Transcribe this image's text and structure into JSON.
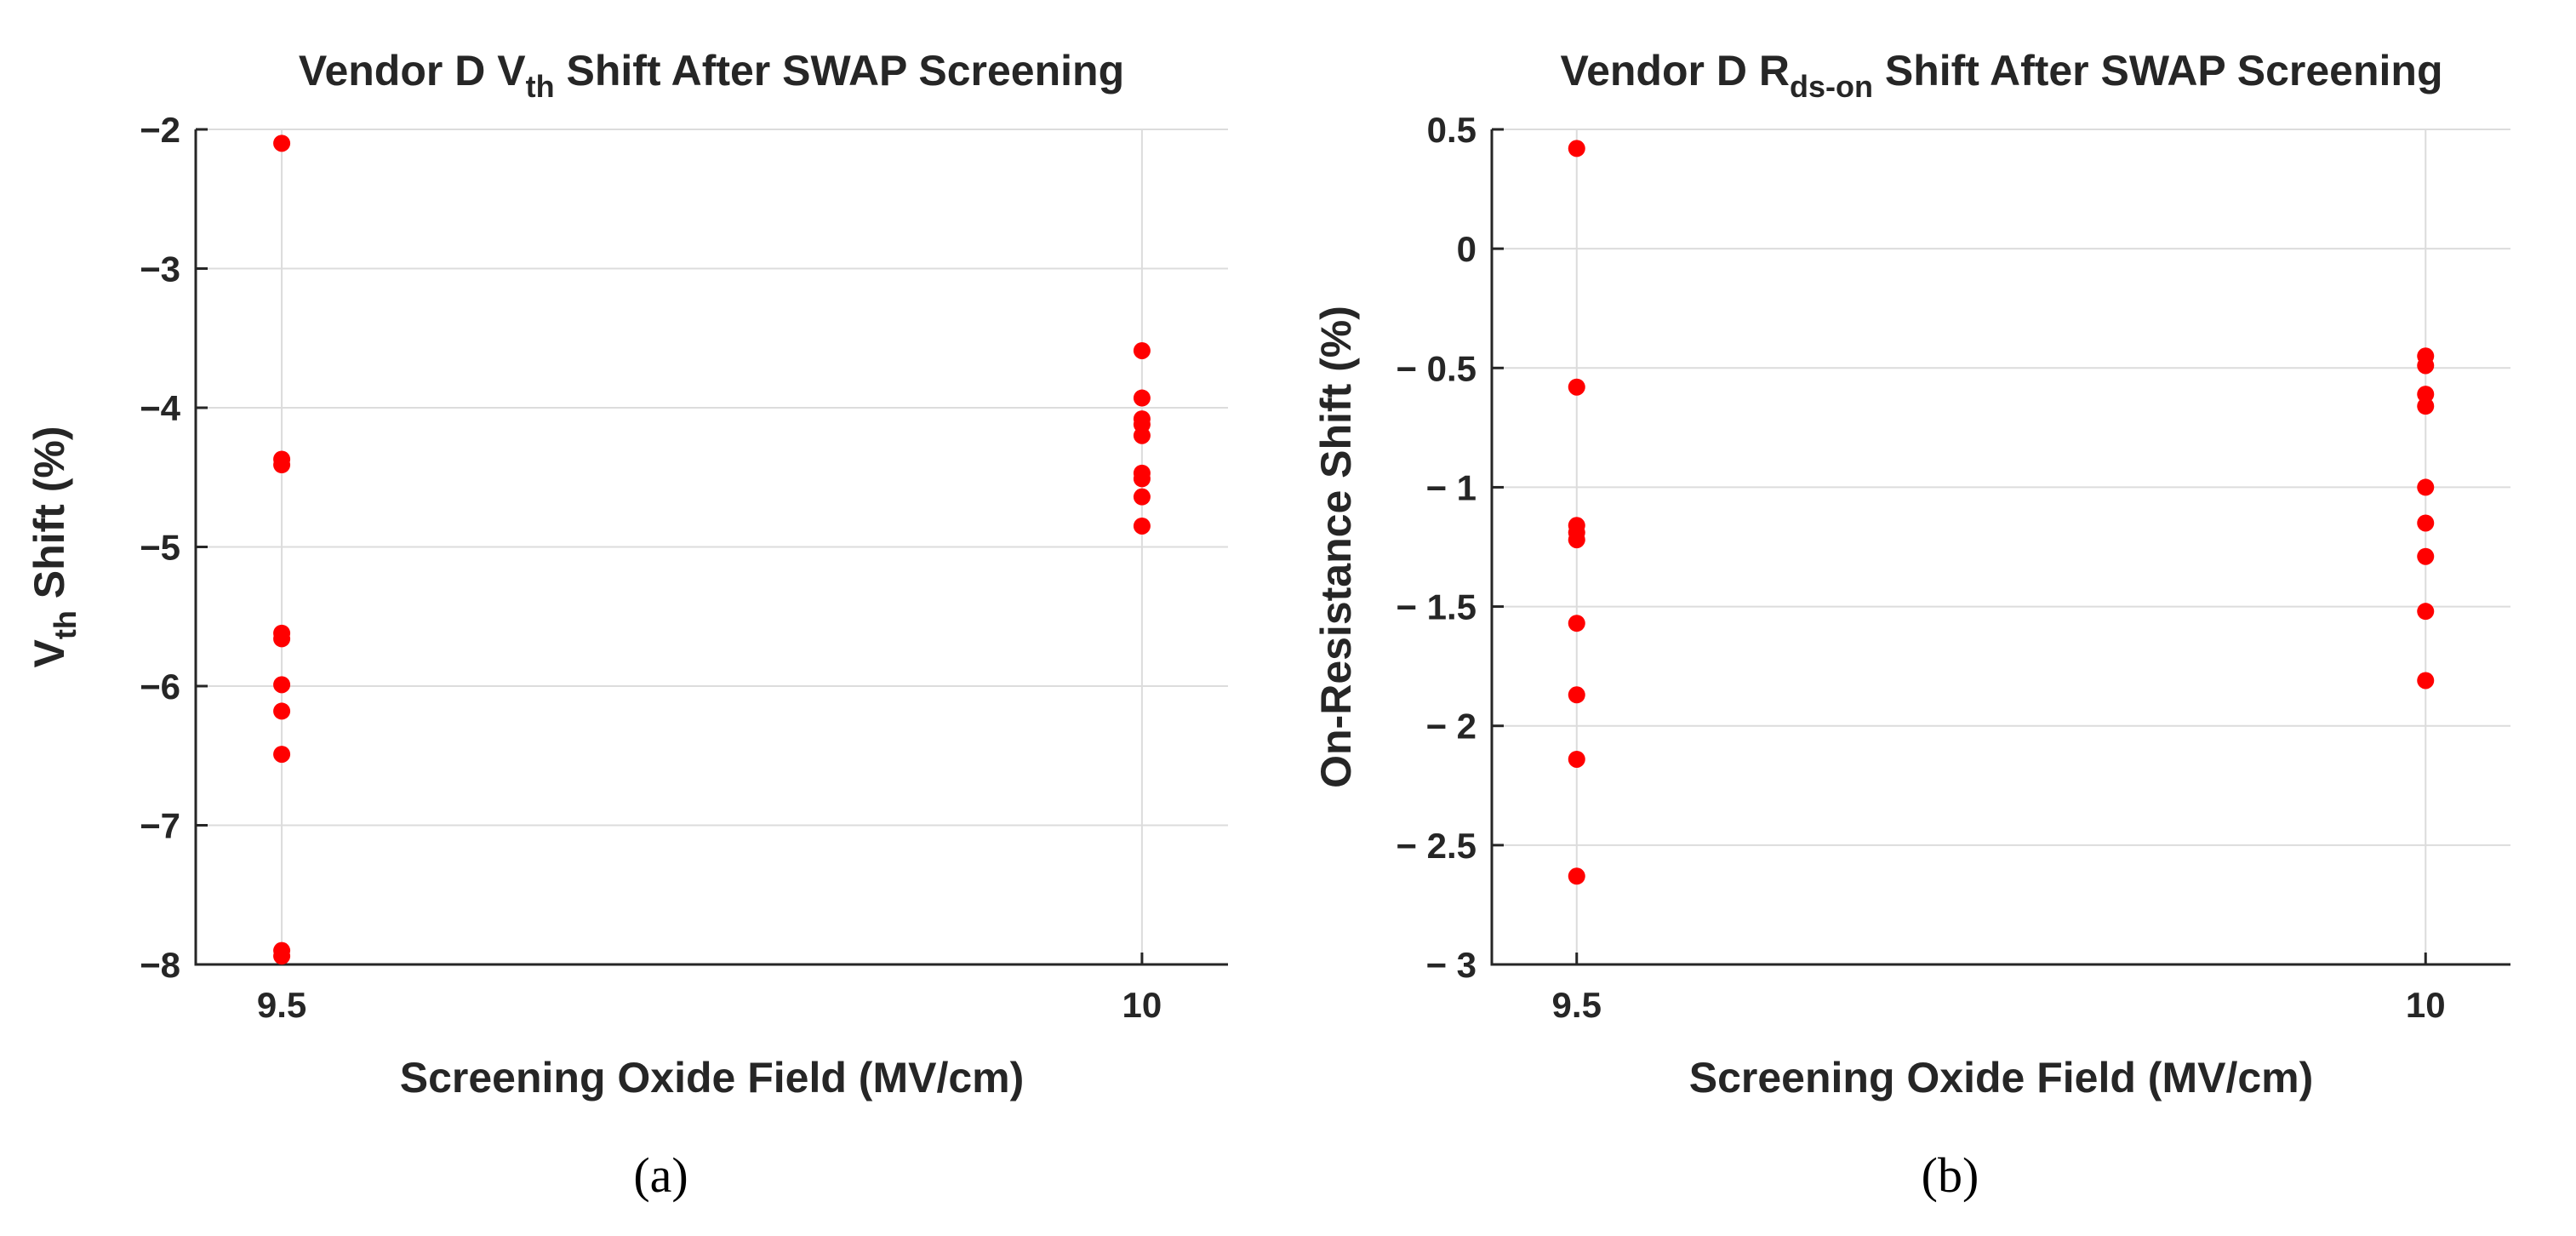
{
  "colors": {
    "marker": "#ff0000",
    "axis": "#262626",
    "grid": "#dcdcdc"
  },
  "chart_data": [
    {
      "type": "scatter",
      "panel_label": "(a)",
      "title": {
        "before": "Vendor D V",
        "sub": "th",
        "after": " Shift After SWAP Screening"
      },
      "xlabel": "Screening Oxide Field (MV/cm)",
      "ylabel": {
        "before": "V",
        "sub": "th",
        "after": " Shift (%)"
      },
      "xlim": [
        9.45,
        10.05
      ],
      "ylim": [
        -8,
        -2
      ],
      "xticks": [
        9.5,
        10
      ],
      "xtick_labels": [
        "9.5",
        "10"
      ],
      "yticks": [
        -8,
        -7,
        -6,
        -5,
        -4,
        -3,
        -2
      ],
      "ytick_labels": [
        "−8",
        "−7",
        "−6",
        "−5",
        "−4",
        "−3",
        "−2"
      ],
      "grid": true,
      "points": [
        [
          9.5,
          -2.1
        ],
        [
          9.5,
          -4.37
        ],
        [
          9.5,
          -4.41
        ],
        [
          9.5,
          -5.62
        ],
        [
          9.5,
          -5.66
        ],
        [
          9.5,
          -5.99
        ],
        [
          9.5,
          -6.18
        ],
        [
          9.5,
          -6.49
        ],
        [
          9.5,
          -7.9
        ],
        [
          9.5,
          -7.94
        ],
        [
          10,
          -3.59
        ],
        [
          10,
          -3.93
        ],
        [
          10,
          -4.08
        ],
        [
          10,
          -4.12
        ],
        [
          10,
          -4.2
        ],
        [
          10,
          -4.47
        ],
        [
          10,
          -4.51
        ],
        [
          10,
          -4.64
        ],
        [
          10,
          -4.85
        ]
      ]
    },
    {
      "type": "scatter",
      "panel_label": "(b)",
      "title": {
        "before": "Vendor D R",
        "sub": "ds-on",
        "after": " Shift After SWAP Screening"
      },
      "xlabel": "Screening Oxide Field (MV/cm)",
      "ylabel": {
        "before": "On-Resistance Shift (%)",
        "sub": "",
        "after": ""
      },
      "xlim": [
        9.45,
        10.05
      ],
      "ylim": [
        -3,
        0.5
      ],
      "xticks": [
        9.5,
        10
      ],
      "xtick_labels": [
        "9.5",
        "10"
      ],
      "yticks": [
        -3,
        -2.5,
        -2,
        -1.5,
        -1,
        -0.5,
        0,
        0.5
      ],
      "ytick_labels": [
        "− 3",
        "− 2.5",
        "− 2",
        "− 1.5",
        "− 1",
        "− 0.5",
        "0",
        "0.5"
      ],
      "grid": true,
      "points": [
        [
          9.5,
          0.42
        ],
        [
          9.5,
          -0.58
        ],
        [
          9.5,
          -1.16
        ],
        [
          9.5,
          -1.19
        ],
        [
          9.5,
          -1.22
        ],
        [
          9.5,
          -1.57
        ],
        [
          9.5,
          -1.87
        ],
        [
          9.5,
          -2.14
        ],
        [
          9.5,
          -2.63
        ],
        [
          10,
          -0.45
        ],
        [
          10,
          -0.49
        ],
        [
          10,
          -0.61
        ],
        [
          10,
          -0.66
        ],
        [
          10,
          -1.0
        ],
        [
          10,
          -1.15
        ],
        [
          10,
          -1.29
        ],
        [
          10,
          -1.52
        ],
        [
          10,
          -1.81
        ]
      ]
    }
  ]
}
